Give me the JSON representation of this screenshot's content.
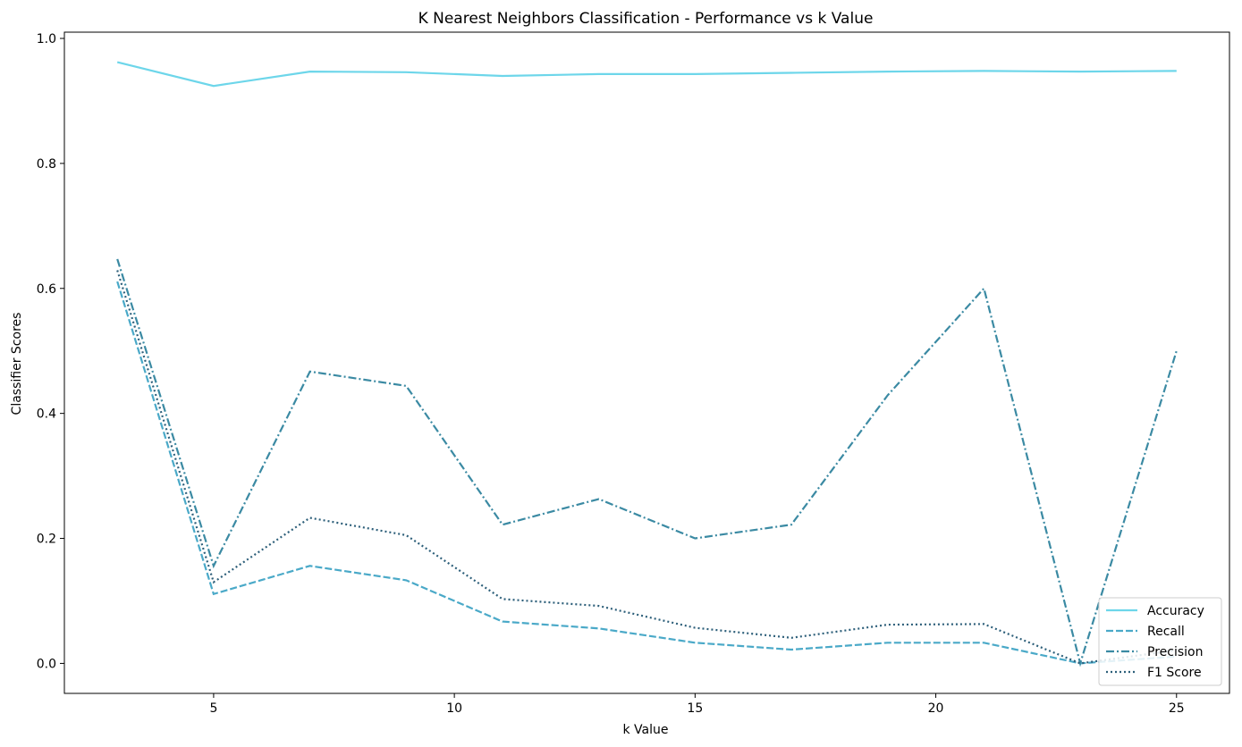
{
  "chart_data": {
    "type": "line",
    "title": "K Nearest Neighbors Classification - Performance vs k Value",
    "xlabel": "k Value",
    "ylabel": "Classifier Scores",
    "xlim": [
      1.9,
      26.1
    ],
    "ylim": [
      -0.048,
      1.01
    ],
    "xticks": [
      5,
      10,
      15,
      20,
      25
    ],
    "yticks": [
      0.0,
      0.2,
      0.4,
      0.6,
      0.8,
      1.0
    ],
    "xtick_labels": [
      "5",
      "10",
      "15",
      "20",
      "25"
    ],
    "ytick_labels": [
      "0.0",
      "0.2",
      "0.4",
      "0.6",
      "0.8",
      "1.0"
    ],
    "grid": false,
    "legend_position": "lower-right",
    "x": [
      3,
      5,
      7,
      9,
      11,
      13,
      15,
      17,
      19,
      21,
      23,
      25
    ],
    "series": [
      {
        "name": "Accuracy",
        "color": "#6dd6ea",
        "dash": "solid",
        "values": [
          0.962,
          0.924,
          0.947,
          0.946,
          0.94,
          0.943,
          0.943,
          0.945,
          0.947,
          0.948,
          0.947,
          0.948
        ]
      },
      {
        "name": "Recall",
        "color": "#4aa9c8",
        "dash": "dashed",
        "values": [
          0.611,
          0.111,
          0.156,
          0.133,
          0.067,
          0.056,
          0.033,
          0.022,
          0.033,
          0.033,
          0.0,
          0.011
        ]
      },
      {
        "name": "Precision",
        "color": "#3b8aa3",
        "dash": "dashdot",
        "values": [
          0.647,
          0.156,
          0.467,
          0.444,
          0.222,
          0.263,
          0.2,
          0.222,
          0.429,
          0.6,
          0.0,
          0.5
        ]
      },
      {
        "name": "F1 Score",
        "color": "#2d5f7a",
        "dash": "dotted",
        "values": [
          0.629,
          0.13,
          0.233,
          0.205,
          0.103,
          0.092,
          0.057,
          0.041,
          0.062,
          0.063,
          0.0,
          0.021
        ]
      }
    ]
  }
}
